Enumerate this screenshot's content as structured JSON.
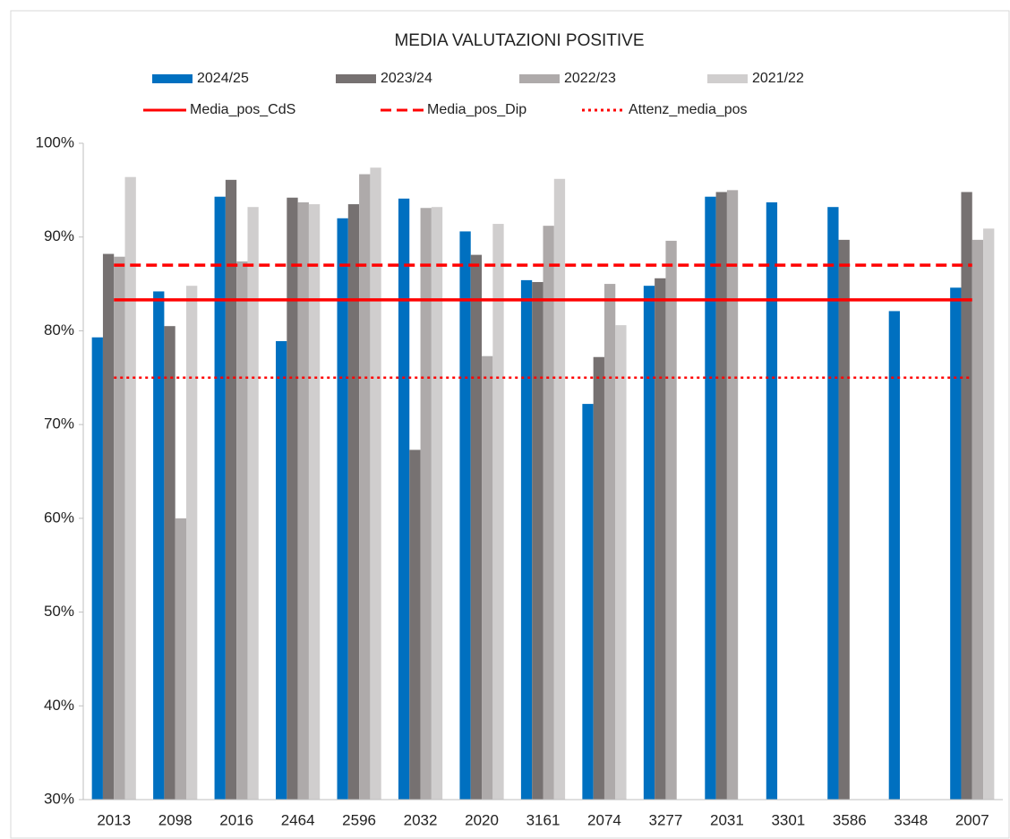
{
  "chart_data": {
    "type": "bar",
    "title": "MEDIA VALUTAZIONI POSITIVE",
    "categories": [
      "2013",
      "2098",
      "2016",
      "2464",
      "2596",
      "2032",
      "2020",
      "3161",
      "2074",
      "3277",
      "2031",
      "3301",
      "3586",
      "3348",
      "2007"
    ],
    "series": [
      {
        "name": "2024/25",
        "color": "#0070c0",
        "values": [
          79.3,
          84.2,
          94.3,
          78.9,
          92.0,
          94.1,
          90.6,
          85.4,
          72.2,
          84.8,
          94.3,
          93.7,
          93.2,
          82.1,
          84.6
        ]
      },
      {
        "name": "2023/24",
        "color": "#767171",
        "values": [
          88.2,
          80.5,
          96.1,
          94.2,
          93.5,
          67.3,
          88.1,
          85.2,
          77.2,
          85.6,
          94.8,
          null,
          89.7,
          null,
          94.8
        ]
      },
      {
        "name": "2022/23",
        "color": "#aeaaaa",
        "values": [
          87.9,
          60.0,
          87.4,
          93.7,
          96.7,
          93.1,
          77.3,
          91.2,
          85.0,
          89.6,
          95.0,
          null,
          null,
          null,
          89.7
        ]
      },
      {
        "name": "2021/22",
        "color": "#d0cece",
        "values": [
          96.4,
          84.8,
          93.2,
          93.5,
          97.4,
          93.2,
          91.4,
          96.2,
          80.6,
          null,
          null,
          null,
          null,
          null,
          90.9
        ]
      }
    ],
    "lines": [
      {
        "name": "Media_pos_CdS",
        "color": "#ff0000",
        "style": "solid",
        "values": [
          83.3,
          83.3,
          83.3,
          83.3,
          83.3,
          83.3,
          83.3,
          83.3,
          83.3,
          83.3,
          83.3,
          83.3,
          83.3,
          83.3,
          83.3
        ]
      },
      {
        "name": "Media_pos_Dip",
        "color": "#ff0000",
        "style": "dashed",
        "values": [
          87.0,
          87.0,
          87.0,
          87.0,
          87.0,
          87.0,
          87.0,
          87.0,
          87.0,
          87.0,
          87.0,
          87.0,
          87.0,
          87.0,
          87.0
        ]
      },
      {
        "name": "Attenz_media_pos",
        "color": "#ff0000",
        "style": "dotted",
        "values": [
          75.0,
          75.0,
          75.0,
          75.0,
          75.0,
          75.0,
          75.0,
          75.0,
          75.0,
          75.0,
          75.0,
          75.0,
          75.0,
          75.0,
          75.0
        ]
      }
    ],
    "ylim": [
      30,
      100
    ],
    "yticks": [
      {
        "value": 30,
        "label": "30%"
      },
      {
        "value": 40,
        "label": "40%"
      },
      {
        "value": 50,
        "label": "50%"
      },
      {
        "value": 60,
        "label": "60%"
      },
      {
        "value": 70,
        "label": "70%"
      },
      {
        "value": 80,
        "label": "80%"
      },
      {
        "value": 90,
        "label": "90%"
      },
      {
        "value": 100,
        "label": "100%"
      }
    ],
    "grid": false
  }
}
